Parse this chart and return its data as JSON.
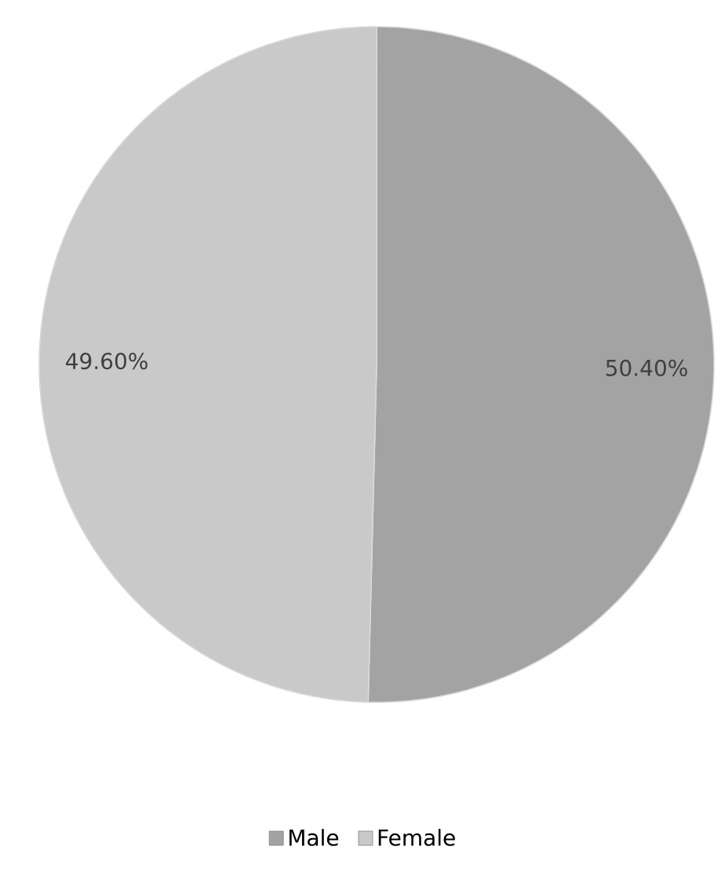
{
  "chart_data": {
    "type": "pie",
    "categories": [
      "Male",
      "Female"
    ],
    "values": [
      50.4,
      49.6
    ],
    "value_labels": [
      "50.40%",
      "49.60%"
    ],
    "colors": [
      "#a3a3a3",
      "#c9c9c9"
    ],
    "legend": "bottom"
  }
}
